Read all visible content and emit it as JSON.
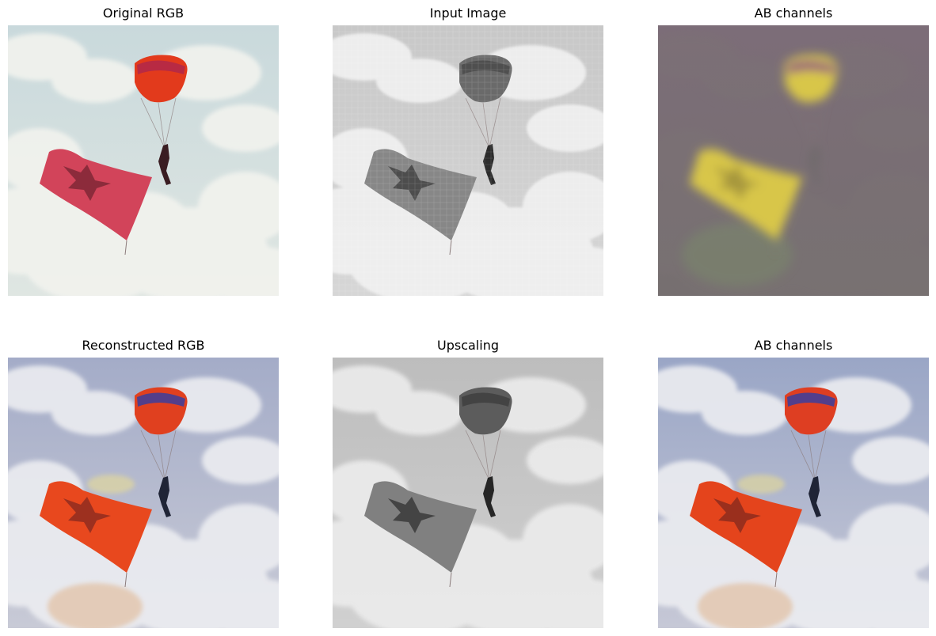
{
  "figure": {
    "panels": [
      {
        "title": "Original RGB",
        "variant": "color-original",
        "colors": {
          "sky_top": "#c9d9dc",
          "sky_bottom": "#dfe6e2",
          "cloud": "#f2f3ee",
          "canopy": "#e23a1c",
          "canopy_stripe": "#b0284a",
          "flag": "#d2445a",
          "flag_shadow": "#7a2533",
          "person": "#3a1d22"
        }
      },
      {
        "title": "Input Image",
        "variant": "grayscale-lowres",
        "colors": {
          "sky_top": "#c8c8c8",
          "sky_bottom": "#d6d6d6",
          "cloud": "#f1f1f1",
          "canopy": "#6a6a6a",
          "canopy_stripe": "#4a4a4a",
          "flag": "#878787",
          "flag_shadow": "#3e3e3e",
          "person": "#2c2c2c"
        }
      },
      {
        "title": "AB channels",
        "variant": "ab-channels",
        "colors": {
          "sky_top": "#7c6d78",
          "sky_bottom": "#766f70",
          "cloud": "#7b7474",
          "canopy": "#d8c64a",
          "canopy_stripe": "#8a4a82",
          "flag": "#d8c64a",
          "flag_shadow": "#9a8a3a",
          "person": "#6f6a6c"
        }
      },
      {
        "title": "Reconstructed RGB",
        "variant": "color-reconstructed",
        "colors": {
          "sky_top": "#a4acc8",
          "sky_bottom": "#c8cad6",
          "cloud": "#ecedf1",
          "canopy": "#e0401f",
          "canopy_stripe": "#3a3e9e",
          "flag": "#e8481e",
          "flag_shadow": "#8a2b1f",
          "person": "#1f2436"
        }
      },
      {
        "title": "Upscaling",
        "variant": "grayscale-upscaled",
        "colors": {
          "sky_top": "#bdbdbd",
          "sky_bottom": "#d0d0d0",
          "cloud": "#ececec",
          "canopy": "#5c5c5c",
          "canopy_stripe": "#3e3e3e",
          "flag": "#808080",
          "flag_shadow": "#343434",
          "person": "#262626"
        }
      },
      {
        "title": "AB channels",
        "variant": "color-reconstructed",
        "colors": {
          "sky_top": "#9aa6c6",
          "sky_bottom": "#c6c8d6",
          "cloud": "#ecedf1",
          "canopy": "#de3e22",
          "canopy_stripe": "#3a3e9e",
          "flag": "#e4441c",
          "flag_shadow": "#872a1e",
          "person": "#1f2436"
        }
      }
    ]
  }
}
